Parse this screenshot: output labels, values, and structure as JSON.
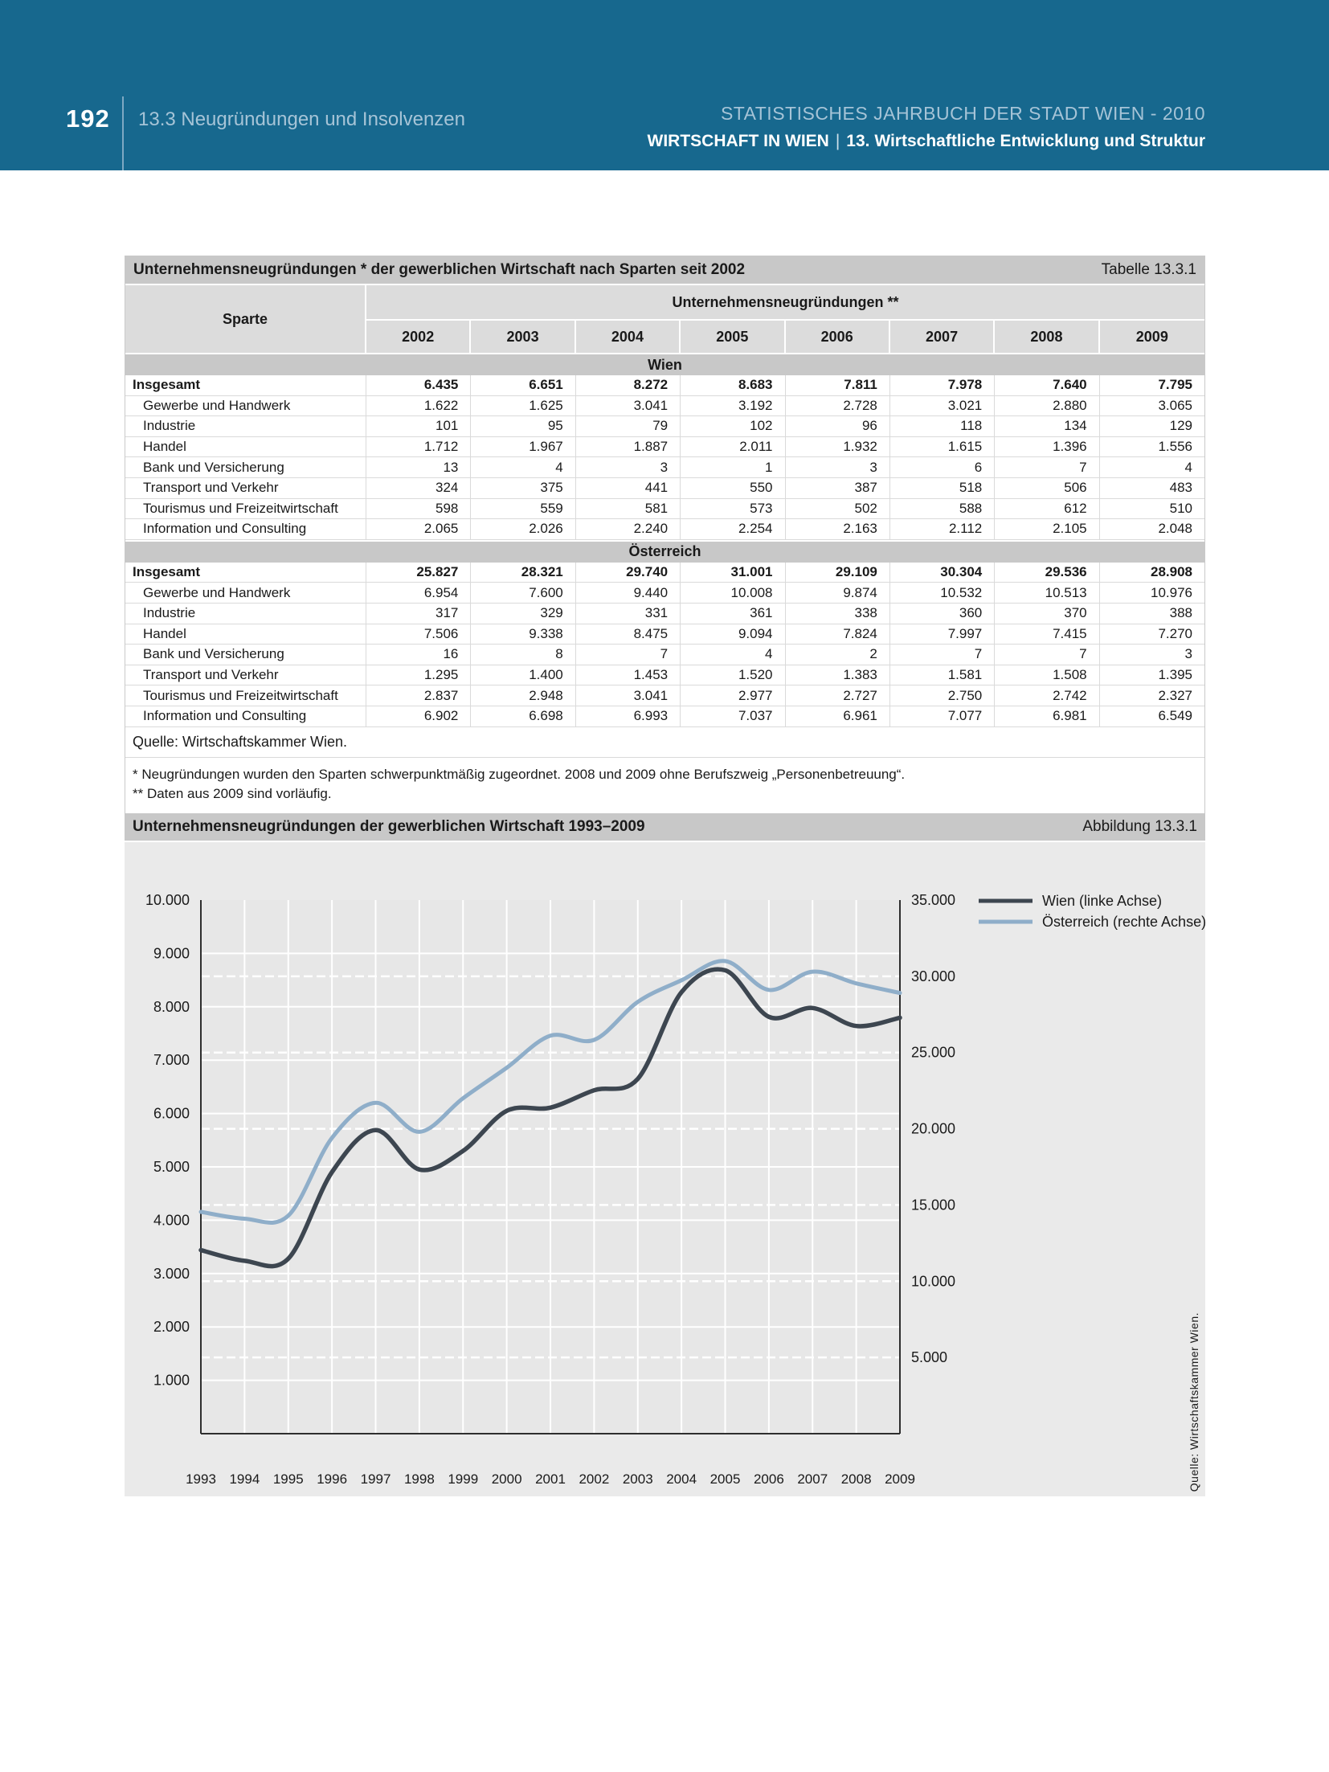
{
  "page": {
    "number": "192",
    "section": "13.3 Neugründungen und Insolvenzen",
    "header_right_line1": "STATISTISCHES JAHRBUCH DER STADT WIEN - 2010",
    "header_right_line2_bold": "WIRTSCHAFT IN WIEN",
    "header_right_line2_sep": "|",
    "header_right_line2_rest": "13. Wirtschaftliche Entwicklung und Struktur"
  },
  "colors": {
    "banner": "#17688E",
    "banner_muted_text": "#a6c4d7",
    "title_bar": "#c8c8c8",
    "header_cell": "#dcdcdc",
    "figure_bg": "#eaeaea",
    "gridline": "#ffffff",
    "axis": "#2e2e2e",
    "wien_line": "#3d4650",
    "oesterreich_line": "#8faec9"
  },
  "table": {
    "title": "Unternehmensneugründungen * der gewerblichen Wirtschaft nach Sparten seit 2002",
    "ref": "Tabelle 13.3.1",
    "sparte_label": "Sparte",
    "col_group": "Unternehmensneugründungen **",
    "years": [
      "2002",
      "2003",
      "2004",
      "2005",
      "2006",
      "2007",
      "2008",
      "2009"
    ],
    "sections": [
      {
        "name": "Wien",
        "rows": [
          {
            "label": "Insgesamt",
            "bold": true,
            "values": [
              "6.435",
              "6.651",
              "8.272",
              "8.683",
              "7.811",
              "7.978",
              "7.640",
              "7.795"
            ]
          },
          {
            "label": "Gewerbe und Handwerk",
            "bold": false,
            "values": [
              "1.622",
              "1.625",
              "3.041",
              "3.192",
              "2.728",
              "3.021",
              "2.880",
              "3.065"
            ]
          },
          {
            "label": "Industrie",
            "bold": false,
            "values": [
              "101",
              "95",
              "79",
              "102",
              "96",
              "118",
              "134",
              "129"
            ]
          },
          {
            "label": "Handel",
            "bold": false,
            "values": [
              "1.712",
              "1.967",
              "1.887",
              "2.011",
              "1.932",
              "1.615",
              "1.396",
              "1.556"
            ]
          },
          {
            "label": "Bank und Versicherung",
            "bold": false,
            "values": [
              "13",
              "4",
              "3",
              "1",
              "3",
              "6",
              "7",
              "4"
            ]
          },
          {
            "label": "Transport und Verkehr",
            "bold": false,
            "values": [
              "324",
              "375",
              "441",
              "550",
              "387",
              "518",
              "506",
              "483"
            ]
          },
          {
            "label": "Tourismus und Freizeitwirtschaft",
            "bold": false,
            "values": [
              "598",
              "559",
              "581",
              "573",
              "502",
              "588",
              "612",
              "510"
            ]
          },
          {
            "label": "Information und Consulting",
            "bold": false,
            "values": [
              "2.065",
              "2.026",
              "2.240",
              "2.254",
              "2.163",
              "2.112",
              "2.105",
              "2.048"
            ]
          }
        ]
      },
      {
        "name": "Österreich",
        "rows": [
          {
            "label": "Insgesamt",
            "bold": true,
            "values": [
              "25.827",
              "28.321",
              "29.740",
              "31.001",
              "29.109",
              "30.304",
              "29.536",
              "28.908"
            ]
          },
          {
            "label": "Gewerbe und Handwerk",
            "bold": false,
            "values": [
              "6.954",
              "7.600",
              "9.440",
              "10.008",
              "9.874",
              "10.532",
              "10.513",
              "10.976"
            ]
          },
          {
            "label": "Industrie",
            "bold": false,
            "values": [
              "317",
              "329",
              "331",
              "361",
              "338",
              "360",
              "370",
              "388"
            ]
          },
          {
            "label": "Handel",
            "bold": false,
            "values": [
              "7.506",
              "9.338",
              "8.475",
              "9.094",
              "7.824",
              "7.997",
              "7.415",
              "7.270"
            ]
          },
          {
            "label": "Bank und Versicherung",
            "bold": false,
            "values": [
              "16",
              "8",
              "7",
              "4",
              "2",
              "7",
              "7",
              "3"
            ]
          },
          {
            "label": "Transport und Verkehr",
            "bold": false,
            "values": [
              "1.295",
              "1.400",
              "1.453",
              "1.520",
              "1.383",
              "1.581",
              "1.508",
              "1.395"
            ]
          },
          {
            "label": "Tourismus und Freizeitwirtschaft",
            "bold": false,
            "values": [
              "2.837",
              "2.948",
              "3.041",
              "2.977",
              "2.727",
              "2.750",
              "2.742",
              "2.327"
            ]
          },
          {
            "label": "Information und Consulting",
            "bold": false,
            "values": [
              "6.902",
              "6.698",
              "6.993",
              "7.037",
              "6.961",
              "7.077",
              "6.981",
              "6.549"
            ]
          }
        ]
      }
    ],
    "source": "Quelle: Wirtschaftskammer Wien.",
    "footnotes": [
      "* Neugründungen wurden den Sparten schwerpunktmäßig zugeordnet. 2008 und 2009 ohne Berufszweig „Personenbetreuung“.",
      "** Daten aus 2009 sind vorläufig."
    ]
  },
  "figure": {
    "title": "Unternehmensneugründungen der gewerblichen Wirtschaft 1993–2009",
    "ref": "Abbildung 13.3.1",
    "source_vertical": "Quelle: Wirtschaftskammer Wien.",
    "legend": [
      {
        "label": "Wien (linke Achse)",
        "color": "#3d4650"
      },
      {
        "label": "Österreich (rechte Achse)",
        "color": "#8faec9"
      }
    ]
  },
  "chart_data": {
    "type": "line",
    "title": "Unternehmensneugründungen der gewerblichen Wirtschaft 1993–2009",
    "x": [
      1993,
      1994,
      1995,
      1996,
      1997,
      1998,
      1999,
      2000,
      2001,
      2002,
      2003,
      2004,
      2005,
      2006,
      2007,
      2008,
      2009
    ],
    "x_tick_labels": [
      "1993",
      "1994",
      "1995",
      "1996",
      "1997",
      "1998",
      "1999",
      "2000",
      "2001",
      "2002",
      "2003",
      "2004",
      "2005",
      "2006",
      "2007",
      "2008",
      "2009"
    ],
    "series": [
      {
        "name": "Wien (linke Achse)",
        "axis": "left",
        "color": "#3d4650",
        "values": [
          3440,
          3240,
          3280,
          4900,
          5690,
          4950,
          5300,
          6050,
          6110,
          6435,
          6651,
          8272,
          8683,
          7811,
          7978,
          7640,
          7795
        ]
      },
      {
        "name": "Österreich (rechte Achse)",
        "axis": "right",
        "color": "#8faec9",
        "values": [
          14550,
          14100,
          14300,
          19400,
          21700,
          19800,
          22000,
          24000,
          26100,
          25827,
          28321,
          29740,
          31001,
          29109,
          30304,
          29536,
          28908
        ]
      }
    ],
    "left_axis": {
      "min": 0,
      "max": 10000,
      "tick_step": 1000,
      "tick_labels": [
        "1.000",
        "2.000",
        "3.000",
        "4.000",
        "5.000",
        "6.000",
        "7.000",
        "8.000",
        "9.000",
        "10.000"
      ]
    },
    "right_axis": {
      "min": 0,
      "max": 35000,
      "tick_step": 5000,
      "tick_labels": [
        "5.000",
        "10.000",
        "15.000",
        "20.000",
        "25.000",
        "30.000",
        "35.000"
      ]
    },
    "grid": "solid white lines at left-axis ticks and years; dashed white lines at right-axis ticks",
    "legend_position": "top-right outside plot",
    "smoothing": "spline"
  }
}
